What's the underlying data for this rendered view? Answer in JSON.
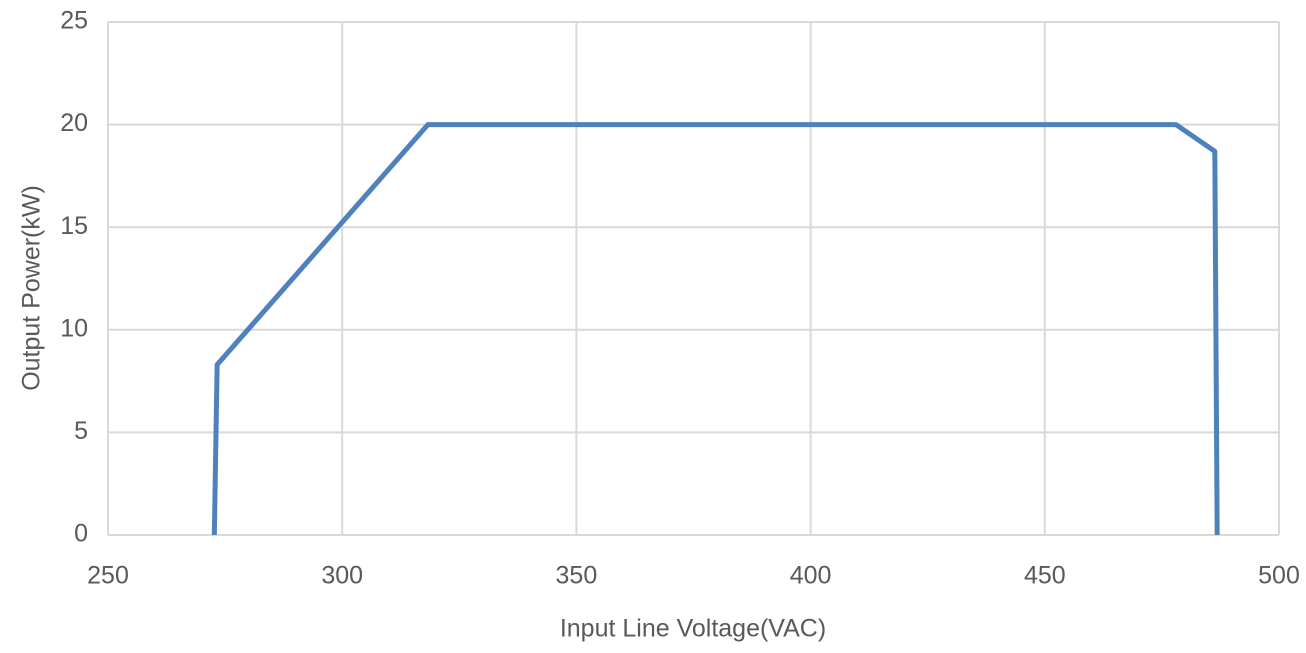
{
  "chart_data": {
    "type": "line",
    "x_label": "Input Line Voltage(VAC)",
    "y_label": "Output Power(kW)",
    "series": [
      {
        "color": "#4f81bd",
        "x": [
          272.7,
          273.3,
          318.3,
          478,
          486.3,
          486.8
        ],
        "values": [
          0,
          8.3,
          20,
          20,
          18.7,
          0
        ]
      }
    ],
    "xlim": [
      250,
      500
    ],
    "xticks": [
      250,
      300,
      350,
      400,
      450,
      500
    ],
    "ylim": [
      0,
      25
    ],
    "yticks": [
      0,
      5,
      10,
      15,
      20,
      25
    ],
    "grid": true
  }
}
